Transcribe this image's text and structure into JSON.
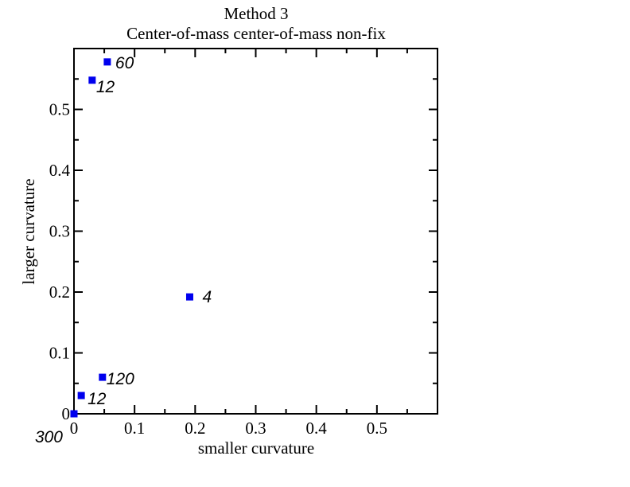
{
  "chart_data": {
    "type": "scatter",
    "title": "Method 3",
    "subtitle": "Center-of-mass center-of-mass non-fix",
    "xlabel": "smaller curvature",
    "ylabel": "larger curvature",
    "xlim": [
      0,
      0.6
    ],
    "ylim": [
      0,
      0.6
    ],
    "x_ticks": [
      0,
      0.1,
      0.2,
      0.3,
      0.4,
      0.5
    ],
    "x_tick_labels": [
      "0",
      "0.1",
      "0.2",
      "0.3",
      "0.4",
      "0.5"
    ],
    "y_ticks": [
      0,
      0.1,
      0.2,
      0.3,
      0.4,
      0.5
    ],
    "y_tick_labels": [
      "0",
      "0.1",
      "0.2",
      "0.3",
      "0.4",
      "0.5"
    ],
    "grid": false,
    "marker_color": "#0000ee",
    "points": [
      {
        "x": 0.055,
        "y": 0.578,
        "label": "60"
      },
      {
        "x": 0.03,
        "y": 0.548,
        "label": "12"
      },
      {
        "x": 0.191,
        "y": 0.192,
        "label": "4"
      },
      {
        "x": 0.047,
        "y": 0.06,
        "label": "120"
      },
      {
        "x": 0.012,
        "y": 0.03,
        "label": "12"
      },
      {
        "x": 0.0,
        "y": 0.0,
        "label": "300"
      }
    ]
  }
}
